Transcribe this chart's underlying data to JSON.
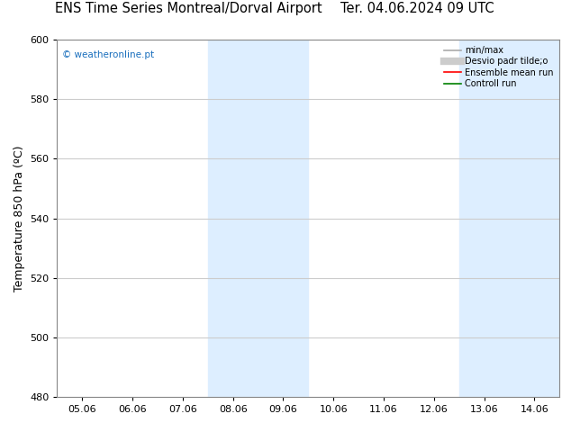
{
  "title_left": "ENS Time Series Montreal/Dorval Airport",
  "title_right": "Ter. 04.06.2024 09 UTC",
  "ylabel": "Temperature 850 hPa (ºC)",
  "watermark": "© weatheronline.pt",
  "xlim_dates": [
    "05.06",
    "06.06",
    "07.06",
    "08.06",
    "09.06",
    "10.06",
    "11.06",
    "12.06",
    "13.06",
    "14.06"
  ],
  "ylim": [
    480,
    600
  ],
  "yticks": [
    480,
    500,
    520,
    540,
    560,
    580,
    600
  ],
  "shaded_bands": [
    {
      "xstart": 3,
      "xend": 5,
      "color": "#ddeeff"
    },
    {
      "xstart": 8,
      "xend": 10,
      "color": "#ddeeff"
    }
  ],
  "legend_entries": [
    {
      "label": "min/max",
      "color": "#aaaaaa",
      "lw": 1.2,
      "style": "solid"
    },
    {
      "label": "Desvio padr tilde;o",
      "color": "#cccccc",
      "lw": 6,
      "style": "solid"
    },
    {
      "label": "Ensemble mean run",
      "color": "red",
      "lw": 1.2,
      "style": "solid"
    },
    {
      "label": "Controll run",
      "color": "green",
      "lw": 1.2,
      "style": "solid"
    }
  ],
  "background_color": "#ffffff",
  "plot_bg_color": "#ffffff",
  "grid_color": "#cccccc",
  "title_fontsize": 10.5,
  "tick_fontsize": 8,
  "label_fontsize": 9,
  "watermark_color": "#1a6fbd"
}
